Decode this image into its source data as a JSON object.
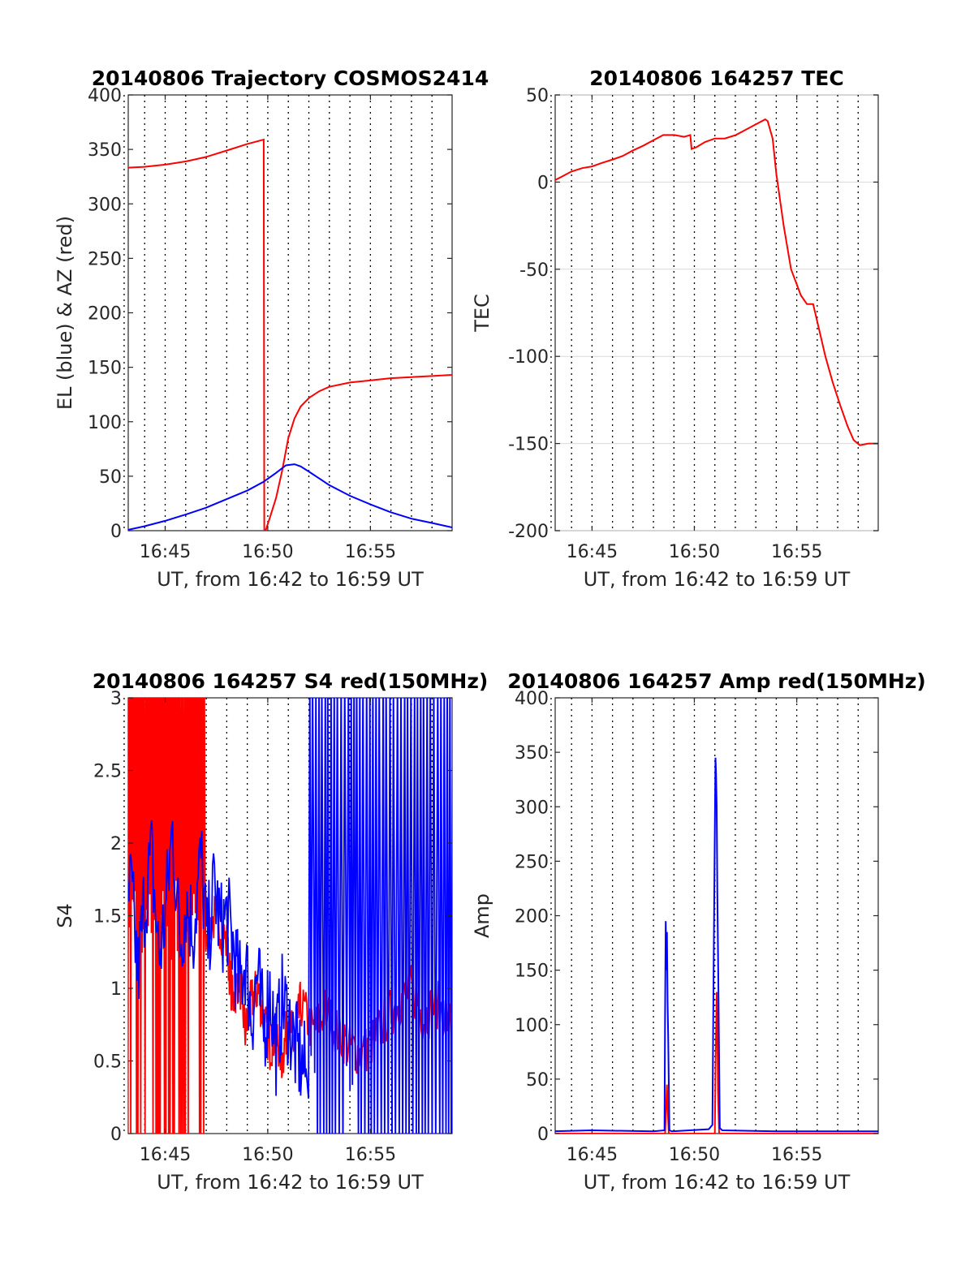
{
  "chart_data": [
    {
      "type": "line",
      "title": "20140806 Trajectory COSMOS2414",
      "xlabel": "UT, from 16:42 to 16:59 UT",
      "ylabel": "EL (blue) & AZ (red)",
      "xlim": [
        16.72,
        16.983
      ],
      "ylim": [
        0,
        400
      ],
      "xticks": [
        {
          "x": 16.75,
          "label": "16:45"
        },
        {
          "x": 16.8333,
          "label": "16:50"
        },
        {
          "x": 16.9167,
          "label": "16:55"
        }
      ],
      "yticks": [
        {
          "y": 0,
          "label": "0"
        },
        {
          "y": 50,
          "label": "50"
        },
        {
          "y": 100,
          "label": "100"
        },
        {
          "y": 150,
          "label": "150"
        },
        {
          "y": 200,
          "label": "200"
        },
        {
          "y": 250,
          "label": "250"
        },
        {
          "y": 300,
          "label": "300"
        },
        {
          "y": 350,
          "label": "350"
        },
        {
          "y": 400,
          "label": "400"
        }
      ],
      "grid": "vertical dotted every minute",
      "series": [
        {
          "color": "#ff0000",
          "x": [
            16.7167,
            16.733,
            16.75,
            16.767,
            16.783,
            16.8,
            16.8167,
            16.83,
            16.8305,
            16.8315,
            16.835,
            16.84,
            16.845,
            16.85,
            16.855,
            16.86,
            16.867,
            16.875,
            16.883,
            16.9,
            16.917,
            16.933,
            16.95,
            16.967,
            16.983
          ],
          "y": [
            333,
            334,
            336,
            339,
            343,
            349,
            355,
            359,
            0,
            0,
            12,
            30,
            55,
            85,
            103,
            114,
            122,
            128,
            132,
            136,
            138,
            140,
            141,
            142,
            143
          ]
        },
        {
          "color": "#0000ff",
          "x": [
            16.7167,
            16.733,
            16.75,
            16.767,
            16.783,
            16.8,
            16.817,
            16.83,
            16.84,
            16.848,
            16.855,
            16.86,
            16.867,
            16.875,
            16.883,
            16.9,
            16.917,
            16.933,
            16.95,
            16.967,
            16.983
          ],
          "y": [
            0,
            4,
            9,
            15,
            21,
            29,
            37,
            45,
            53,
            60,
            61,
            59,
            54,
            48,
            42,
            32,
            24,
            17,
            11,
            7,
            3
          ]
        }
      ]
    },
    {
      "type": "line",
      "title": "20140806 164257 TEC",
      "xlabel": "UT, from 16:42 to 16:59 UT",
      "ylabel": "TEC",
      "xlim": [
        16.72,
        16.983
      ],
      "ylim": [
        -200,
        50
      ],
      "xticks": [
        {
          "x": 16.75,
          "label": "16:45"
        },
        {
          "x": 16.8333,
          "label": "16:50"
        },
        {
          "x": 16.9167,
          "label": "16:55"
        }
      ],
      "yticks": [
        {
          "y": -200,
          "label": "-200"
        },
        {
          "y": -150,
          "label": "-150"
        },
        {
          "y": -100,
          "label": "-100"
        },
        {
          "y": -50,
          "label": "-50"
        },
        {
          "y": 0,
          "label": "0"
        },
        {
          "y": 50,
          "label": "50"
        }
      ],
      "grid": "vertical dotted every minute, horizontal light",
      "series": [
        {
          "color": "#ff0000",
          "x": [
            16.7167,
            16.725,
            16.733,
            16.742,
            16.75,
            16.758,
            16.767,
            16.775,
            16.783,
            16.792,
            16.8,
            16.808,
            16.817,
            16.825,
            16.83,
            16.831,
            16.835,
            16.842,
            16.85,
            16.858,
            16.867,
            16.875,
            16.883,
            16.891,
            16.893,
            16.897,
            16.9,
            16.906,
            16.912,
            16.92,
            16.925,
            16.93,
            16.935,
            16.94,
            16.946,
            16.952,
            16.958,
            16.963,
            16.968,
            16.975,
            16.983
          ],
          "y": [
            0,
            3,
            6,
            8,
            9,
            11,
            13,
            15,
            18,
            21,
            24,
            27,
            27,
            26,
            27,
            19,
            20,
            23,
            25,
            25,
            27,
            30,
            33,
            36,
            35,
            25,
            5,
            -25,
            -50,
            -65,
            -70,
            -70,
            -85,
            -100,
            -115,
            -128,
            -140,
            -148,
            -151,
            -150,
            -150
          ]
        }
      ]
    },
    {
      "type": "line",
      "title": "20140806 164257 S4 red(150MHz)",
      "xlabel": "UT, from 16:42 to 16:59 UT",
      "ylabel": "S4",
      "xlim": [
        16.72,
        16.983
      ],
      "ylim": [
        0,
        3
      ],
      "xticks": [
        {
          "x": 16.75,
          "label": "16:45"
        },
        {
          "x": 16.8333,
          "label": "16:50"
        },
        {
          "x": 16.9167,
          "label": "16:55"
        }
      ],
      "yticks": [
        {
          "y": 0,
          "label": "0"
        },
        {
          "y": 0.5,
          "label": "0.5"
        },
        {
          "y": 1,
          "label": "1"
        },
        {
          "y": 1.5,
          "label": "1.5"
        },
        {
          "y": 2,
          "label": "2"
        },
        {
          "y": 2.5,
          "label": "2.5"
        },
        {
          "y": 3,
          "label": "3"
        }
      ],
      "grid": "vertical dotted every minute",
      "series": [
        {
          "color": "#ff0000",
          "x": [
            16.7167,
            16.725,
            16.733,
            16.742,
            16.75,
            16.758,
            16.767,
            16.775,
            16.783,
            16.792,
            16.8,
            16.805,
            16.81,
            16.815,
            16.82,
            16.825,
            16.83,
            16.835,
            16.84,
            16.845,
            16.85,
            16.855,
            16.86,
            16.87,
            16.88,
            16.89,
            16.9,
            16.91,
            16.92,
            16.93,
            16.94,
            16.95,
            16.96,
            16.97,
            16.983
          ],
          "y": [
            1.3,
            1.5,
            1.2,
            1.6,
            1.4,
            1.5,
            1.3,
            1.6,
            1.4,
            1.5,
            1.3,
            0.9,
            1.1,
            0.7,
            0.9,
            1.0,
            0.8,
            0.6,
            0.7,
            0.5,
            0.8,
            0.6,
            0.9,
            0.7,
            0.85,
            0.7,
            0.6,
            0.55,
            0.65,
            0.8,
            0.9,
            1.0,
            0.8,
            0.9,
            0.75
          ]
        },
        {
          "color": "#0000ff",
          "x": [
            16.7167,
            16.722,
            16.728,
            16.733,
            16.739,
            16.745,
            16.75,
            16.756,
            16.762,
            16.767,
            16.773,
            16.779,
            16.784,
            16.79,
            16.795,
            16.8,
            16.805,
            16.81,
            16.815,
            16.82,
            16.825,
            16.83,
            16.835,
            16.84,
            16.845,
            16.85,
            16.855,
            16.86,
            16.865
          ],
          "y": [
            1.3,
            1.7,
            1.1,
            1.6,
            1.9,
            1.2,
            1.5,
            2.1,
            1.3,
            1.6,
            1.4,
            1.9,
            1.3,
            1.7,
            1.4,
            1.5,
            1.3,
            1.0,
            1.2,
            0.8,
            1.1,
            0.7,
            1.0,
            0.6,
            0.9,
            0.8,
            0.6,
            0.5,
            0.4
          ]
        }
      ]
    },
    {
      "type": "line",
      "title": "20140806 164257 Amp red(150MHz)",
      "xlabel": "UT, from 16:42 to 16:59 UT",
      "ylabel": "Amp",
      "xlim": [
        16.72,
        16.983
      ],
      "ylim": [
        0,
        400
      ],
      "xticks": [
        {
          "x": 16.75,
          "label": "16:45"
        },
        {
          "x": 16.8333,
          "label": "16:50"
        },
        {
          "x": 16.9167,
          "label": "16:55"
        }
      ],
      "yticks": [
        {
          "y": 0,
          "label": "0"
        },
        {
          "y": 50,
          "label": "50"
        },
        {
          "y": 100,
          "label": "100"
        },
        {
          "y": 150,
          "label": "150"
        },
        {
          "y": 200,
          "label": "200"
        },
        {
          "y": 250,
          "label": "250"
        },
        {
          "y": 300,
          "label": "300"
        },
        {
          "y": 350,
          "label": "350"
        },
        {
          "y": 400,
          "label": "400"
        }
      ],
      "grid": "vertical dotted every minute",
      "series": [
        {
          "color": "#ff0000",
          "x": [
            16.7167,
            16.8,
            16.8095,
            16.8105,
            16.811,
            16.8115,
            16.8125,
            16.82,
            16.85,
            16.8505,
            16.8515,
            16.852,
            16.8525,
            16.8535,
            16.86,
            16.983
          ],
          "y": [
            0,
            0,
            0,
            30,
            45,
            25,
            0,
            0,
            0,
            60,
            130,
            100,
            40,
            0,
            0,
            0
          ]
        },
        {
          "color": "#0000ff",
          "x": [
            16.7167,
            16.75,
            16.8,
            16.809,
            16.8095,
            16.81,
            16.8105,
            16.811,
            16.8115,
            16.812,
            16.813,
            16.815,
            16.845,
            16.848,
            16.849,
            16.85,
            16.8505,
            16.851,
            16.8515,
            16.852,
            16.853,
            16.854,
            16.856,
            16.9,
            16.983
          ],
          "y": [
            2,
            3,
            2,
            3,
            110,
            195,
            150,
            185,
            120,
            90,
            3,
            2,
            4,
            8,
            150,
            280,
            345,
            330,
            300,
            220,
            120,
            5,
            3,
            2,
            2
          ]
        }
      ]
    }
  ]
}
